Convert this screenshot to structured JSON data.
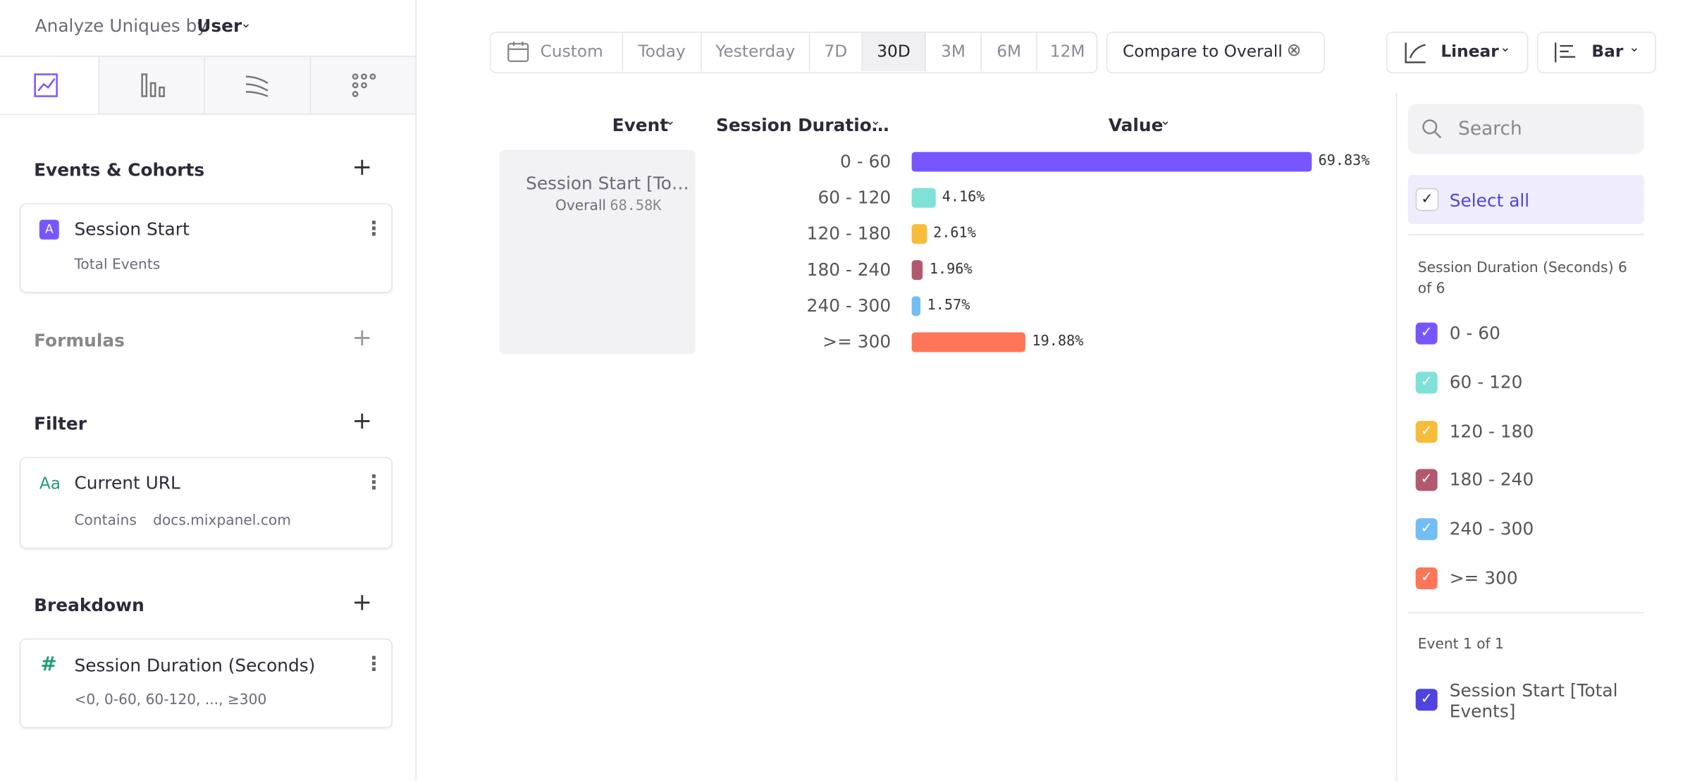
{
  "header": {
    "label": "Analyze Uniques by",
    "value": "User"
  },
  "left_panel": {
    "events_title": "Events & Cohorts",
    "event": {
      "badge": "A",
      "name": "Session Start",
      "detail": "Total Events"
    },
    "formulas_title": "Formulas",
    "filter_title": "Filter",
    "filter": {
      "badge": "Aa",
      "name": "Current URL",
      "operator": "Contains",
      "value": "docs.mixpanel.com"
    },
    "breakdown_title": "Breakdown",
    "breakdown": {
      "badge": "#",
      "name": "Session Duration (Seconds)",
      "detail": "<0, 0-60, 60-120, ..., ≥300"
    }
  },
  "toolbar": {
    "date_ranges": [
      "Custom",
      "Today",
      "Yesterday",
      "7D",
      "30D",
      "3M",
      "6M",
      "12M"
    ],
    "compare": "Compare to Overall",
    "scale": "Linear",
    "chart_kind": "Bar"
  },
  "table": {
    "columns": [
      "Event",
      "Session Duratio…",
      "Value"
    ],
    "event_name": "Session Start [To…",
    "event_sub": "Overall",
    "event_total": "68.58K"
  },
  "chart_data": {
    "type": "bar",
    "orientation": "horizontal",
    "categories": [
      "0 - 60",
      "60 - 120",
      "120 - 180",
      "180 - 240",
      "240 - 300",
      ">= 300"
    ],
    "values": [
      69.83,
      4.16,
      2.61,
      1.96,
      1.57,
      19.88
    ],
    "value_labels": [
      "69.83%",
      "4.16%",
      "2.61%",
      "1.96%",
      "1.57%",
      "19.88%"
    ],
    "colors": [
      "#7856ff",
      "#80e1d9",
      "#f8bc3b",
      "#b2596e",
      "#72bef4",
      "#ff7557"
    ]
  },
  "right_panel": {
    "search": "Search",
    "select_all": "Select all",
    "group_title": "Session Duration (Seconds) 6 of 6",
    "event_group_title": "Event 1 of 1",
    "event_item": "Session Start [Total Events]"
  }
}
